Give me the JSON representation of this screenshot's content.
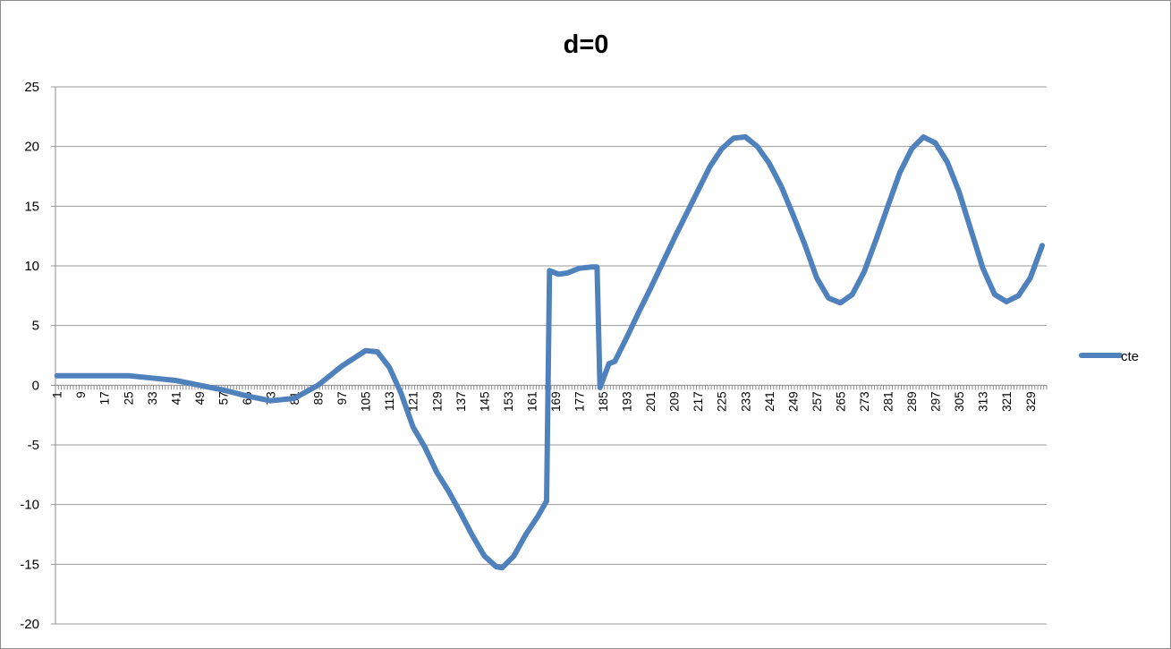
{
  "chart_data": {
    "type": "line",
    "title": "d=0",
    "xlabel": "",
    "ylabel": "",
    "ylim": [
      -20,
      25
    ],
    "yticks": [
      -20,
      -15,
      -10,
      -5,
      0,
      5,
      10,
      15,
      20,
      25
    ],
    "x_range": [
      1,
      334
    ],
    "x_tick_step": 8,
    "grid": "horizontal",
    "legend_position": "right",
    "series": [
      {
        "name": "cte",
        "color": "#4f81bd",
        "points": [
          [
            1,
            0.8
          ],
          [
            25,
            0.8
          ],
          [
            33,
            0.6
          ],
          [
            41,
            0.4
          ],
          [
            49,
            0.0
          ],
          [
            57,
            -0.4
          ],
          [
            65,
            -0.9
          ],
          [
            73,
            -1.3
          ],
          [
            81,
            -1.1
          ],
          [
            89,
            0.0
          ],
          [
            97,
            1.6
          ],
          [
            105,
            2.9
          ],
          [
            109,
            2.8
          ],
          [
            113,
            1.5
          ],
          [
            117,
            -0.7
          ],
          [
            121,
            -3.5
          ],
          [
            125,
            -5.2
          ],
          [
            129,
            -7.3
          ],
          [
            133,
            -8.9
          ],
          [
            137,
            -10.7
          ],
          [
            141,
            -12.6
          ],
          [
            145,
            -14.3
          ],
          [
            149,
            -15.2
          ],
          [
            151,
            -15.3
          ],
          [
            155,
            -14.3
          ],
          [
            159,
            -12.5
          ],
          [
            163,
            -11.0
          ],
          [
            166,
            -9.7
          ],
          [
            167,
            9.6
          ],
          [
            170,
            9.3
          ],
          [
            173,
            9.4
          ],
          [
            177,
            9.8
          ],
          [
            181,
            9.9
          ],
          [
            183,
            9.9
          ],
          [
            184,
            -0.2
          ],
          [
            187,
            1.8
          ],
          [
            189,
            2.0
          ],
          [
            193,
            4.0
          ],
          [
            197,
            6.1
          ],
          [
            201,
            8.1
          ],
          [
            205,
            10.2
          ],
          [
            209,
            12.3
          ],
          [
            213,
            14.3
          ],
          [
            217,
            16.3
          ],
          [
            221,
            18.3
          ],
          [
            225,
            19.8
          ],
          [
            229,
            20.7
          ],
          [
            233,
            20.8
          ],
          [
            237,
            20.0
          ],
          [
            241,
            18.6
          ],
          [
            245,
            16.7
          ],
          [
            249,
            14.3
          ],
          [
            253,
            11.8
          ],
          [
            257,
            9.0
          ],
          [
            261,
            7.3
          ],
          [
            265,
            6.9
          ],
          [
            269,
            7.6
          ],
          [
            273,
            9.5
          ],
          [
            277,
            12.2
          ],
          [
            281,
            15.0
          ],
          [
            285,
            17.8
          ],
          [
            289,
            19.8
          ],
          [
            293,
            20.8
          ],
          [
            297,
            20.3
          ],
          [
            301,
            18.7
          ],
          [
            305,
            16.2
          ],
          [
            309,
            13.0
          ],
          [
            313,
            9.8
          ],
          [
            317,
            7.6
          ],
          [
            321,
            7.0
          ],
          [
            325,
            7.5
          ],
          [
            329,
            9.0
          ],
          [
            333,
            11.7
          ]
        ]
      }
    ]
  }
}
